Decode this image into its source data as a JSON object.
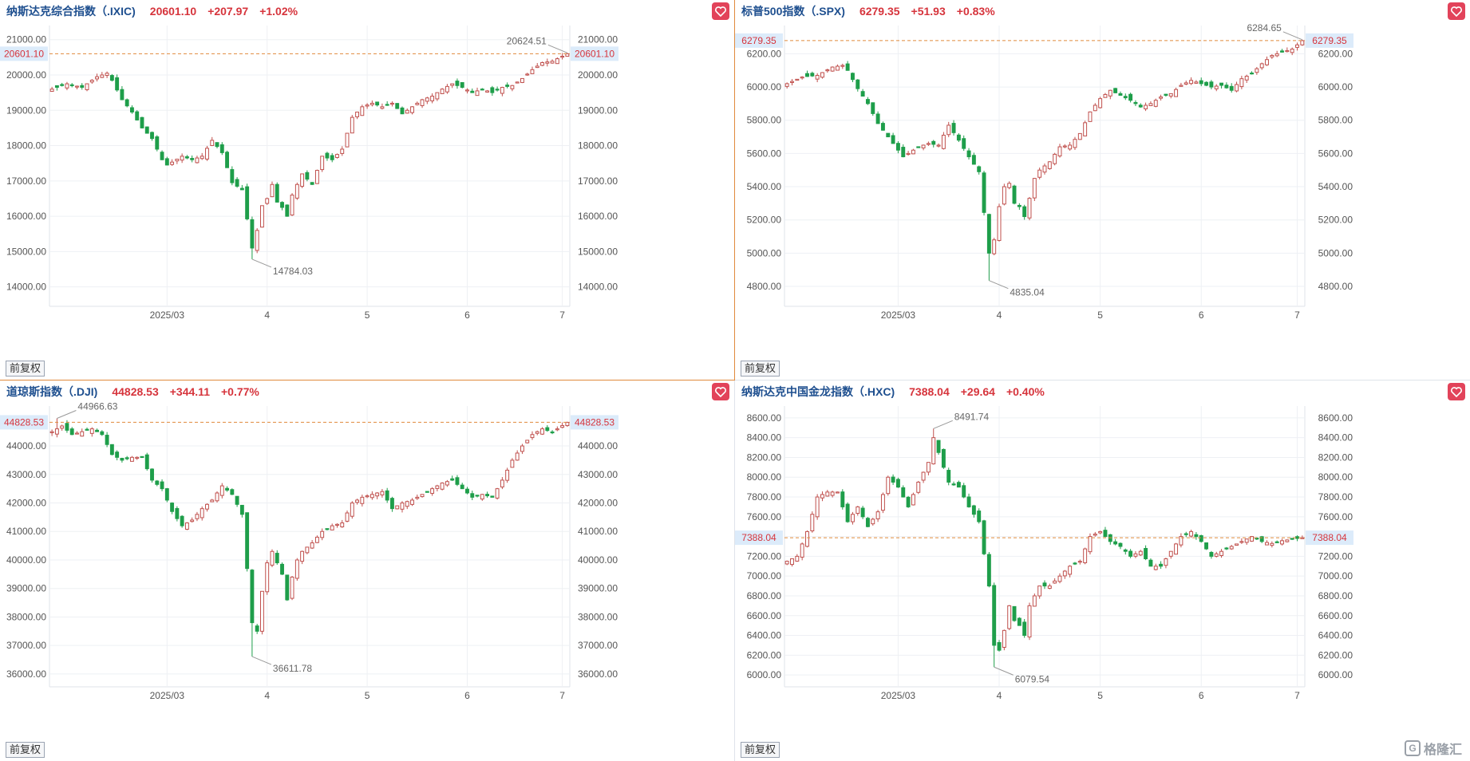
{
  "watermark": {
    "text": "格隆汇",
    "icon": "gelonghui-logo-icon"
  },
  "fq_label": "前复权",
  "colors": {
    "up": "#c0504d",
    "down": "#1e9e4a",
    "grid": "#eef0f4",
    "refline": "#e08a3c",
    "price_tag_bg": "#dcebfa",
    "price_tag_text": "#d6343c",
    "fav_bg": "#e2435a"
  },
  "panels": [
    {
      "name": "纳斯达克综合指数（.IXIC)",
      "price": "20601.10",
      "change": "+207.97",
      "pct": "+1.02%",
      "chart_data": {
        "type": "candlestick",
        "y_ticks": [
          "21000.00",
          "20000.00",
          "19000.00",
          "18000.00",
          "17000.00",
          "16000.00",
          "15000.00",
          "14000.00"
        ],
        "y_tick_values": [
          21000,
          20000,
          19000,
          18000,
          17000,
          16000,
          15000,
          14000
        ],
        "ylim": [
          13450,
          21400
        ],
        "x_labels": [
          {
            "t": "2025/03",
            "i": 23
          },
          {
            "t": "4",
            "i": 43
          },
          {
            "t": "5",
            "i": 63
          },
          {
            "t": "6",
            "i": 83
          },
          {
            "t": "7",
            "i": 102
          }
        ],
        "n": 104,
        "last_price": 20601.1,
        "last_price_label": "20601.10",
        "max": {
          "value": 20624.51,
          "label": "20624.51",
          "i": 103
        },
        "min": {
          "value": 14784.03,
          "label": "14784.03",
          "i": 40
        },
        "anchors": [
          [
            0,
            19600
          ],
          [
            3,
            19750
          ],
          [
            6,
            19650
          ],
          [
            9,
            19950
          ],
          [
            11,
            20050
          ],
          [
            12,
            19850
          ],
          [
            14,
            19300
          ],
          [
            16,
            18950
          ],
          [
            18,
            18500
          ],
          [
            20,
            18200
          ],
          [
            22,
            17600
          ],
          [
            23,
            17450
          ],
          [
            26,
            17700
          ],
          [
            28,
            17600
          ],
          [
            30,
            17700
          ],
          [
            32,
            18150
          ],
          [
            34,
            17800
          ],
          [
            36,
            16950
          ],
          [
            38,
            16750
          ],
          [
            40,
            15100
          ],
          [
            41,
            15600
          ],
          [
            42,
            16300
          ],
          [
            43,
            16500
          ],
          [
            44,
            16900
          ],
          [
            45,
            16400
          ],
          [
            46,
            16250
          ],
          [
            47,
            16000
          ],
          [
            48,
            16600
          ],
          [
            49,
            16900
          ],
          [
            50,
            17200
          ],
          [
            52,
            16900
          ],
          [
            54,
            17700
          ],
          [
            56,
            17600
          ],
          [
            58,
            17900
          ],
          [
            60,
            18800
          ],
          [
            62,
            19100
          ],
          [
            64,
            19200
          ],
          [
            66,
            19100
          ],
          [
            68,
            19200
          ],
          [
            70,
            18900
          ],
          [
            72,
            19100
          ],
          [
            74,
            19300
          ],
          [
            76,
            19400
          ],
          [
            78,
            19600
          ],
          [
            80,
            19750
          ],
          [
            82,
            19650
          ],
          [
            84,
            19500
          ],
          [
            86,
            19600
          ],
          [
            88,
            19500
          ],
          [
            90,
            19650
          ],
          [
            92,
            19700
          ],
          [
            94,
            19900
          ],
          [
            96,
            20150
          ],
          [
            98,
            20350
          ],
          [
            100,
            20390
          ],
          [
            103,
            20601
          ]
        ]
      }
    },
    {
      "name": "标普500指数（.SPX)",
      "price": "6279.35",
      "change": "+51.93",
      "pct": "+0.83%",
      "chart_data": {
        "type": "candlestick",
        "y_ticks": [
          "6200.00",
          "6000.00",
          "5800.00",
          "5600.00",
          "5400.00",
          "5200.00",
          "5000.00",
          "4800.00"
        ],
        "y_tick_values": [
          6200,
          6000,
          5800,
          5600,
          5400,
          5200,
          5000,
          4800
        ],
        "ylim": [
          4680,
          6370
        ],
        "x_labels": [
          {
            "t": "2025/03",
            "i": 22
          },
          {
            "t": "4",
            "i": 42
          },
          {
            "t": "5",
            "i": 62
          },
          {
            "t": "6",
            "i": 82
          },
          {
            "t": "7",
            "i": 101
          }
        ],
        "n": 103,
        "last_price": 6279.35,
        "last_price_label": "6279.35",
        "max": {
          "value": 6284.65,
          "label": "6284.65",
          "i": 102
        },
        "min": {
          "value": 4835.04,
          "label": "4835.04",
          "i": 40
        },
        "anchors": [
          [
            0,
            6020
          ],
          [
            3,
            6060
          ],
          [
            6,
            6070
          ],
          [
            9,
            6120
          ],
          [
            11,
            6130
          ],
          [
            12,
            6100
          ],
          [
            14,
            5990
          ],
          [
            16,
            5900
          ],
          [
            18,
            5780
          ],
          [
            20,
            5700
          ],
          [
            22,
            5620
          ],
          [
            23,
            5580
          ],
          [
            26,
            5640
          ],
          [
            28,
            5660
          ],
          [
            30,
            5650
          ],
          [
            32,
            5770
          ],
          [
            34,
            5680
          ],
          [
            36,
            5580
          ],
          [
            38,
            5490
          ],
          [
            40,
            5000
          ],
          [
            41,
            5080
          ],
          [
            42,
            5280
          ],
          [
            43,
            5400
          ],
          [
            44,
            5420
          ],
          [
            45,
            5300
          ],
          [
            46,
            5280
          ],
          [
            47,
            5220
          ],
          [
            48,
            5330
          ],
          [
            49,
            5450
          ],
          [
            50,
            5500
          ],
          [
            52,
            5550
          ],
          [
            54,
            5640
          ],
          [
            56,
            5650
          ],
          [
            58,
            5720
          ],
          [
            60,
            5850
          ],
          [
            62,
            5930
          ],
          [
            64,
            5980
          ],
          [
            66,
            5950
          ],
          [
            68,
            5920
          ],
          [
            70,
            5880
          ],
          [
            72,
            5900
          ],
          [
            74,
            5940
          ],
          [
            76,
            5960
          ],
          [
            78,
            6010
          ],
          [
            80,
            6040
          ],
          [
            82,
            6020
          ],
          [
            84,
            6000
          ],
          [
            86,
            6010
          ],
          [
            88,
            5980
          ],
          [
            90,
            6050
          ],
          [
            92,
            6080
          ],
          [
            94,
            6140
          ],
          [
            96,
            6190
          ],
          [
            98,
            6210
          ],
          [
            100,
            6228
          ],
          [
            102,
            6279
          ]
        ]
      }
    },
    {
      "name": "道琼斯指数（.DJI)",
      "price": "44828.53",
      "change": "+344.11",
      "pct": "+0.77%",
      "chart_data": {
        "type": "candlestick",
        "y_ticks": [
          "44000.00",
          "43000.00",
          "42000.00",
          "41000.00",
          "40000.00",
          "39000.00",
          "38000.00",
          "37000.00",
          "36000.00"
        ],
        "y_tick_values": [
          44000,
          43000,
          42000,
          41000,
          40000,
          39000,
          38000,
          37000,
          36000
        ],
        "ylim": [
          35550,
          45400
        ],
        "x_labels": [
          {
            "t": "2025/03",
            "i": 23
          },
          {
            "t": "4",
            "i": 43
          },
          {
            "t": "5",
            "i": 63
          },
          {
            "t": "6",
            "i": 83
          },
          {
            "t": "7",
            "i": 102
          }
        ],
        "n": 104,
        "last_price": 44828.53,
        "last_price_label": "44828.53",
        "max": {
          "value": 44966.63,
          "label": "44966.63",
          "i": 1
        },
        "min": {
          "value": 36611.78,
          "label": "36611.78",
          "i": 40
        },
        "anchors": [
          [
            0,
            44500
          ],
          [
            2,
            44700
          ],
          [
            4,
            44400
          ],
          [
            6,
            44500
          ],
          [
            8,
            44600
          ],
          [
            10,
            44400
          ],
          [
            12,
            43700
          ],
          [
            14,
            43500
          ],
          [
            16,
            43600
          ],
          [
            18,
            43600
          ],
          [
            20,
            42800
          ],
          [
            22,
            42500
          ],
          [
            24,
            41700
          ],
          [
            26,
            41200
          ],
          [
            28,
            41400
          ],
          [
            30,
            41800
          ],
          [
            32,
            42100
          ],
          [
            34,
            42600
          ],
          [
            36,
            42300
          ],
          [
            38,
            41600
          ],
          [
            40,
            37800
          ],
          [
            41,
            37500
          ],
          [
            42,
            38900
          ],
          [
            43,
            39900
          ],
          [
            44,
            40300
          ],
          [
            45,
            39900
          ],
          [
            46,
            39500
          ],
          [
            47,
            38600
          ],
          [
            48,
            39400
          ],
          [
            49,
            40000
          ],
          [
            50,
            40300
          ],
          [
            52,
            40600
          ],
          [
            54,
            41000
          ],
          [
            56,
            41200
          ],
          [
            58,
            41300
          ],
          [
            60,
            42000
          ],
          [
            62,
            42200
          ],
          [
            64,
            42300
          ],
          [
            66,
            42400
          ],
          [
            68,
            41800
          ],
          [
            70,
            42000
          ],
          [
            72,
            42100
          ],
          [
            74,
            42300
          ],
          [
            76,
            42500
          ],
          [
            78,
            42700
          ],
          [
            80,
            42800
          ],
          [
            82,
            42500
          ],
          [
            84,
            42200
          ],
          [
            86,
            42300
          ],
          [
            88,
            42200
          ],
          [
            90,
            42800
          ],
          [
            92,
            43500
          ],
          [
            94,
            44000
          ],
          [
            96,
            44400
          ],
          [
            98,
            44600
          ],
          [
            100,
            44484
          ],
          [
            103,
            44828
          ]
        ]
      }
    },
    {
      "name": "纳斯达克中国金龙指数（.HXC)",
      "price": "7388.04",
      "change": "+29.64",
      "pct": "+0.40%",
      "chart_data": {
        "type": "candlestick",
        "y_ticks": [
          "8600.00",
          "8400.00",
          "8200.00",
          "8000.00",
          "7800.00",
          "7600.00",
          "7400.00",
          "7200.00",
          "7000.00",
          "6800.00",
          "6600.00",
          "6400.00",
          "6200.00",
          "6000.00"
        ],
        "y_tick_values": [
          8600,
          8400,
          8200,
          8000,
          7800,
          7600,
          7400,
          7200,
          7000,
          6800,
          6600,
          6400,
          6200,
          6000
        ],
        "ylim": [
          5880,
          8720
        ],
        "x_labels": [
          {
            "t": "2025/03",
            "i": 22
          },
          {
            "t": "4",
            "i": 42
          },
          {
            "t": "5",
            "i": 62
          },
          {
            "t": "6",
            "i": 82
          },
          {
            "t": "7",
            "i": 101
          }
        ],
        "n": 103,
        "last_price": 7388.04,
        "last_price_label": "7388.04",
        "max": {
          "value": 8491.74,
          "label": "8491.74",
          "i": 29
        },
        "min": {
          "value": 6079.54,
          "label": "6079.54",
          "i": 41
        },
        "anchors": [
          [
            0,
            7150
          ],
          [
            2,
            7200
          ],
          [
            4,
            7450
          ],
          [
            6,
            7800
          ],
          [
            8,
            7850
          ],
          [
            10,
            7850
          ],
          [
            12,
            7550
          ],
          [
            14,
            7700
          ],
          [
            16,
            7500
          ],
          [
            18,
            7650
          ],
          [
            20,
            8000
          ],
          [
            22,
            7900
          ],
          [
            24,
            7700
          ],
          [
            26,
            7950
          ],
          [
            28,
            8150
          ],
          [
            29,
            8400
          ],
          [
            30,
            8250
          ],
          [
            32,
            7950
          ],
          [
            34,
            7900
          ],
          [
            36,
            7700
          ],
          [
            38,
            7550
          ],
          [
            40,
            6900
          ],
          [
            41,
            6300
          ],
          [
            42,
            6250
          ],
          [
            43,
            6450
          ],
          [
            44,
            6700
          ],
          [
            45,
            6550
          ],
          [
            46,
            6500
          ],
          [
            47,
            6400
          ],
          [
            48,
            6700
          ],
          [
            50,
            6900
          ],
          [
            52,
            6900
          ],
          [
            54,
            7000
          ],
          [
            56,
            7100
          ],
          [
            58,
            7150
          ],
          [
            60,
            7400
          ],
          [
            62,
            7450
          ],
          [
            64,
            7350
          ],
          [
            66,
            7300
          ],
          [
            68,
            7200
          ],
          [
            70,
            7250
          ],
          [
            72,
            7100
          ],
          [
            74,
            7100
          ],
          [
            76,
            7250
          ],
          [
            78,
            7400
          ],
          [
            80,
            7450
          ],
          [
            82,
            7350
          ],
          [
            84,
            7200
          ],
          [
            86,
            7250
          ],
          [
            88,
            7300
          ],
          [
            90,
            7350
          ],
          [
            92,
            7400
          ],
          [
            94,
            7350
          ],
          [
            96,
            7330
          ],
          [
            98,
            7358
          ],
          [
            102,
            7388
          ]
        ]
      }
    }
  ]
}
